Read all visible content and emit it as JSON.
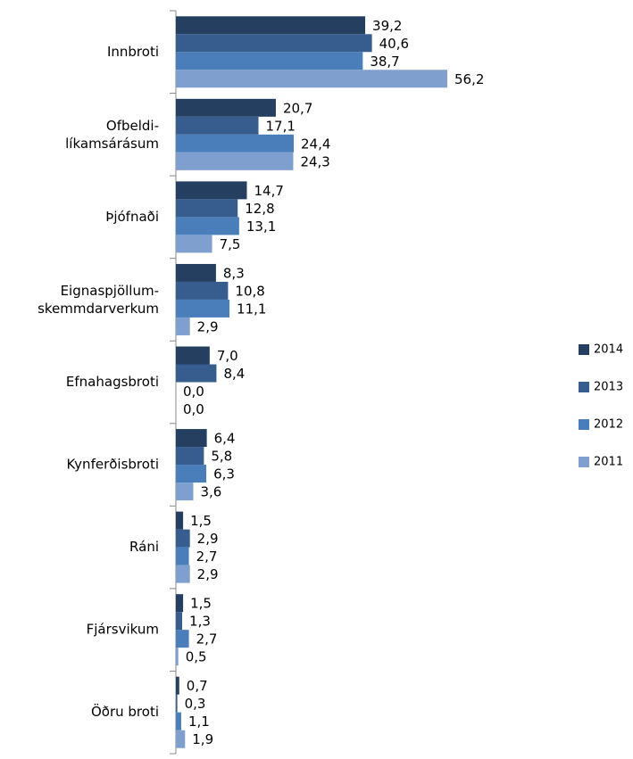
{
  "chart_data": {
    "type": "barh",
    "categories": [
      "Innbroti",
      "Ofbeldi-\nlíkamsárásum",
      "Þjófnaði",
      "Eignaspjöllum-\nskemmdarverkum",
      "Efnahagsbroti",
      "Kynferðisbroti",
      "Ráni",
      "Fjársvikum",
      "Öðru broti"
    ],
    "series": [
      {
        "name": "2014",
        "color": "#243f60",
        "values": [
          39.2,
          20.7,
          14.7,
          8.3,
          7.0,
          6.4,
          1.5,
          1.5,
          0.7
        ],
        "value_labels": [
          "39,2",
          "20,7",
          "14,7",
          "8,3",
          "7,0",
          "6,4",
          "1,5",
          "1,5",
          "0,7"
        ]
      },
      {
        "name": "2013",
        "color": "#375d8f",
        "values": [
          40.6,
          17.1,
          12.8,
          10.8,
          8.4,
          5.8,
          2.9,
          1.3,
          0.3
        ],
        "value_labels": [
          "40,6",
          "17,1",
          "12,8",
          "10,8",
          "8,4",
          "5,8",
          "2,9",
          "1,3",
          "0,3"
        ]
      },
      {
        "name": "2012",
        "color": "#4a7ebb",
        "values": [
          38.7,
          24.4,
          13.1,
          11.1,
          0.0,
          6.3,
          2.7,
          2.7,
          1.1
        ],
        "value_labels": [
          "38,7",
          "24,4",
          "13,1",
          "11,1",
          "0,0",
          "6,3",
          "2,7",
          "2,7",
          "1,1"
        ]
      },
      {
        "name": "2011",
        "color": "#7f9fcf",
        "values": [
          56.2,
          24.3,
          7.5,
          2.9,
          0.0,
          3.6,
          2.9,
          0.5,
          1.9
        ],
        "value_labels": [
          "56,2",
          "24,3",
          "7,5",
          "2,9",
          "0,0",
          "3,6",
          "2,9",
          "0,5",
          "1,9"
        ]
      }
    ],
    "xlim": [
      0,
      70
    ],
    "legend": "right"
  }
}
